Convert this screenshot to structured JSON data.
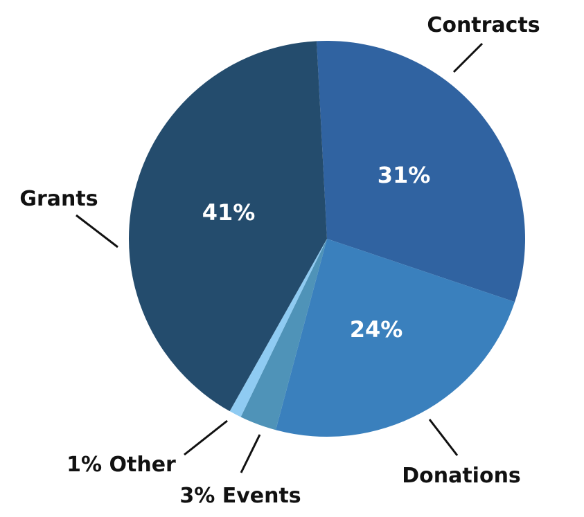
{
  "chart_data": {
    "type": "pie",
    "slices": [
      {
        "label": "Contracts",
        "value": 31,
        "pct_text": "31%",
        "color": "#3063a1"
      },
      {
        "label": "Donations",
        "value": 24,
        "pct_text": "24%",
        "color": "#3a80bd"
      },
      {
        "label": "Events",
        "value": 3,
        "pct_text": "3% Events",
        "color": "#4f93b8"
      },
      {
        "label": "Other",
        "value": 1,
        "pct_text": "1% Other",
        "color": "#8fcbf2"
      },
      {
        "label": "Grants",
        "value": 41,
        "pct_text": "41%",
        "color": "#244c6d"
      }
    ],
    "start_angle_deg": -3,
    "direction": "clockwise"
  }
}
